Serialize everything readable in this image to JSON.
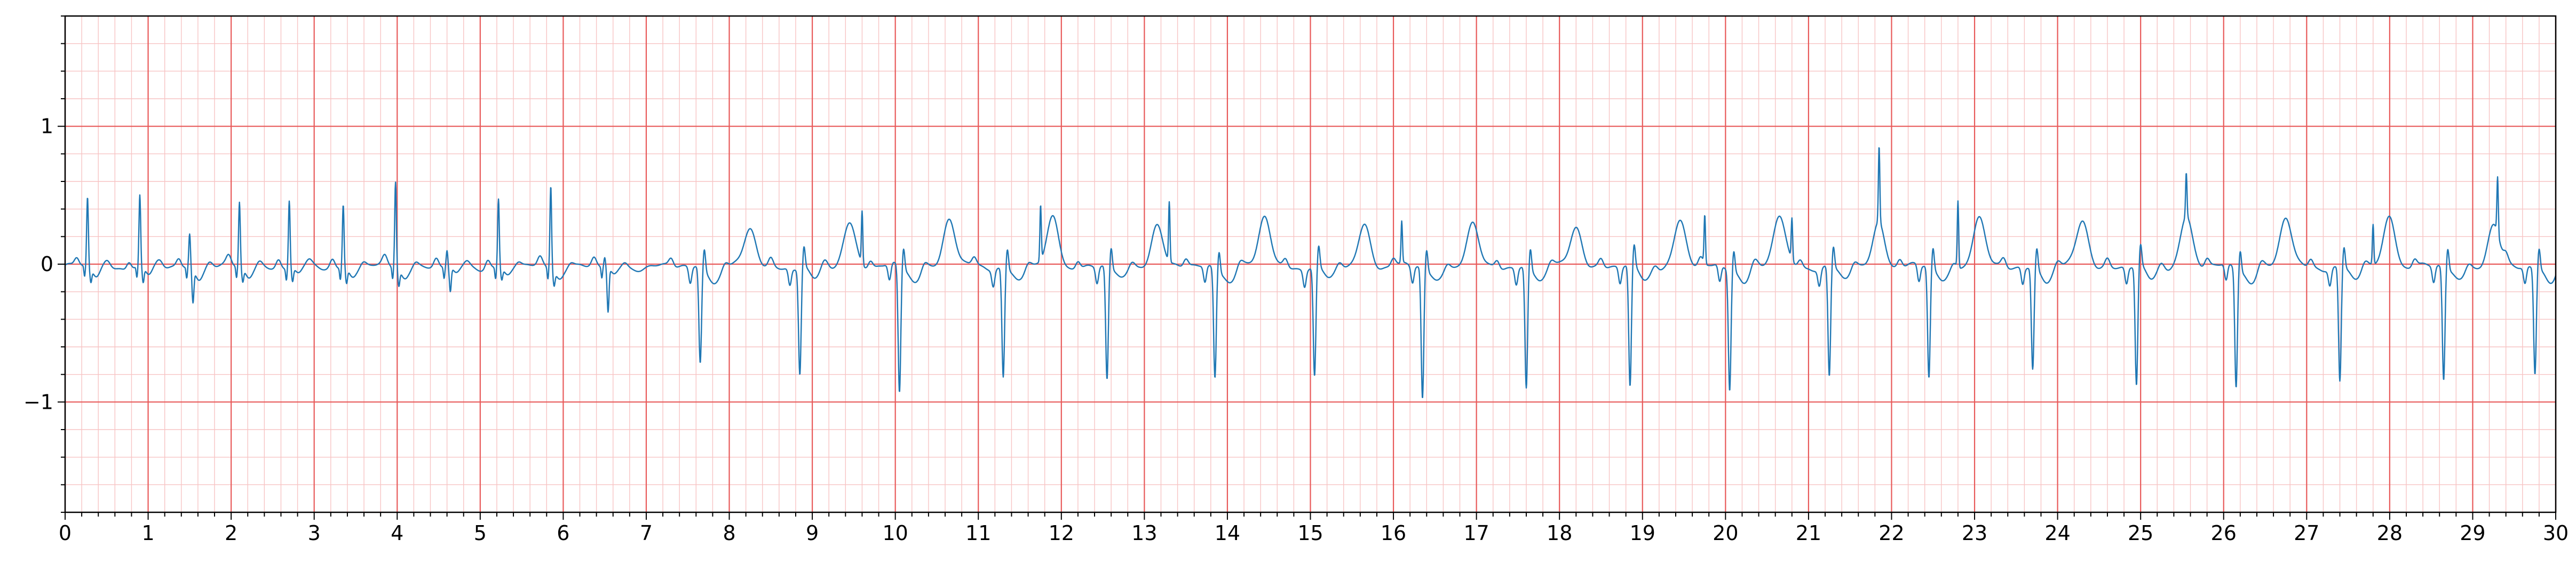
{
  "chart_data": {
    "type": "line",
    "title": "",
    "xlabel": "",
    "ylabel": "",
    "xlim": [
      0,
      30
    ],
    "ylim": [
      -1.8,
      1.8
    ],
    "x_ticks": [
      0,
      1,
      2,
      3,
      4,
      5,
      6,
      7,
      8,
      9,
      10,
      11,
      12,
      13,
      14,
      15,
      16,
      17,
      18,
      19,
      20,
      21,
      22,
      23,
      24,
      25,
      26,
      27,
      28,
      29,
      30
    ],
    "x_tick_labels": [
      "0",
      "1",
      "2",
      "3",
      "4",
      "5",
      "6",
      "7",
      "8",
      "9",
      "10",
      "11",
      "12",
      "13",
      "14",
      "15",
      "16",
      "17",
      "18",
      "19",
      "20",
      "21",
      "22",
      "23",
      "24",
      "25",
      "26",
      "27",
      "28",
      "29",
      "30"
    ],
    "y_ticks": [
      -1,
      0,
      1
    ],
    "y_tick_labels": [
      "−1",
      "0",
      "1"
    ],
    "grid": "ECG paper: major lines every 1 unit, minor lines every 0.2 units",
    "colors": {
      "major_grid": "#e85a5a",
      "minor_grid": "#f7c4c4",
      "series": "#1f77b4",
      "axes": "#000000"
    },
    "series": [
      {
        "color": "#1f77b4",
        "beats_section_1": {
          "note": "narrow tall-R complexes, approximate R-peak times and amplitudes",
          "times": [
            0.27,
            0.9,
            1.5,
            2.1,
            2.7,
            3.35,
            3.98,
            4.6,
            5.22,
            5.85,
            6.5
          ],
          "r_peak": [
            0.5,
            0.51,
            0.24,
            0.47,
            0.49,
            0.46,
            0.63,
            0.12,
            0.5,
            0.61,
            0.07
          ],
          "s_trough": [
            -0.12,
            -0.14,
            -0.3,
            -0.12,
            -0.12,
            -0.13,
            -0.14,
            -0.22,
            -0.1,
            -0.12,
            -0.4
          ]
        },
        "beats_section_2": {
          "note": "wide negative complexes with tall T waves, approximate trough times and amplitudes",
          "times": [
            7.65,
            8.85,
            10.05,
            11.3,
            12.55,
            13.85,
            15.05,
            16.35,
            17.6,
            18.85,
            20.05,
            21.25,
            22.45,
            23.7,
            24.95,
            26.15,
            27.4,
            28.65,
            29.75
          ],
          "trough": [
            -0.7,
            -0.77,
            -0.92,
            -0.79,
            -0.82,
            -0.79,
            -0.8,
            -0.95,
            -0.88,
            -0.89,
            -0.87,
            -0.8,
            -0.81,
            -0.74,
            -0.87,
            -0.86,
            -0.83,
            -0.82,
            -0.77
          ],
          "t_wave": [
            0.27,
            0.33,
            0.35,
            0.35,
            0.31,
            0.36,
            0.31,
            0.3,
            0.3,
            0.33,
            0.37,
            0.33,
            0.36,
            0.34,
            0.37,
            0.35,
            0.37,
            0.29,
            0.37
          ],
          "spike_times": [
            9.6,
            11.75,
            13.3,
            16.1,
            19.75,
            20.8,
            21.85,
            22.8,
            25.55,
            27.8,
            29.3
          ],
          "spike_values": [
            0.38,
            0.4,
            0.43,
            0.3,
            0.35,
            0.3,
            0.55,
            0.48,
            0.32,
            0.29,
            0.41
          ]
        }
      }
    ]
  }
}
